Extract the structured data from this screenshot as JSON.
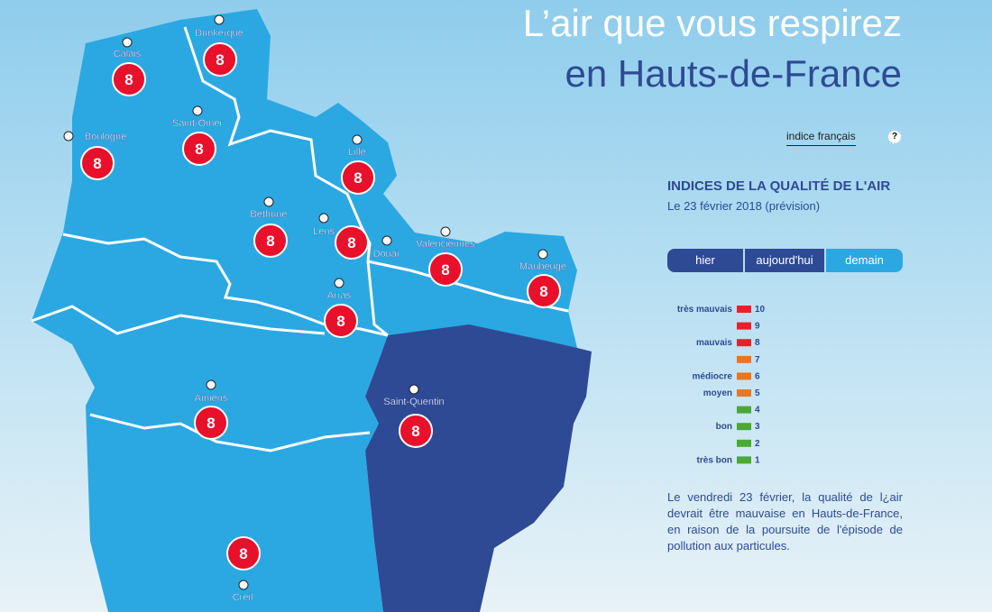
{
  "header": {
    "title_line1": "L’air que vous respirez",
    "title_line2": "en Hauts-de-France"
  },
  "toggle": {
    "label": "indice français",
    "help": "?"
  },
  "panel": {
    "heading": "INDICES DE LA QUALITÉ DE L'AIR",
    "date": "Le 23 février 2018 (prévision)",
    "tabs": [
      "hier",
      "aujourd'hui",
      "demain"
    ],
    "description": "Le vendredi 23 février, la qualité de l¿air devrait être mauvaise en Hauts-de-France, en raison de la poursuite de l'épisode de pollution aux particules."
  },
  "legend": [
    {
      "label": "très mauvais",
      "index": 10,
      "color": "#e8202a"
    },
    {
      "index": 9,
      "color": "#e8202a"
    },
    {
      "label": "mauvais",
      "index": 8,
      "color": "#e8202a"
    },
    {
      "index": 7,
      "color": "#e87722"
    },
    {
      "label": "médiocre",
      "index": 6,
      "color": "#e87722"
    },
    {
      "label": "moyen",
      "index": 5,
      "color": "#e87722"
    },
    {
      "index": 4,
      "color": "#4aa837"
    },
    {
      "label": "bon",
      "index": 3,
      "color": "#4aa837"
    },
    {
      "index": 2,
      "color": "#4aa837"
    },
    {
      "label": "très bon",
      "index": 1,
      "color": "#4aa837"
    }
  ],
  "cities": [
    {
      "name": "Dunkerque",
      "index": 8
    },
    {
      "name": "Calais",
      "index": 8
    },
    {
      "name": "Saint-Omer",
      "index": 8
    },
    {
      "name": "Boulogne",
      "index": 8
    },
    {
      "name": "Lille",
      "index": 8
    },
    {
      "name": "Béthune",
      "index": 8
    },
    {
      "name": "Lens",
      "index": 8
    },
    {
      "name": "Douai"
    },
    {
      "name": "Valenciennes",
      "index": 8
    },
    {
      "name": "Arras",
      "index": 8
    },
    {
      "name": "Maubeuge",
      "index": 8
    },
    {
      "name": "Amiens",
      "index": 8
    },
    {
      "name": "Saint-Quentin",
      "index": 8
    },
    {
      "name": "Creil",
      "index": 8
    }
  ]
}
